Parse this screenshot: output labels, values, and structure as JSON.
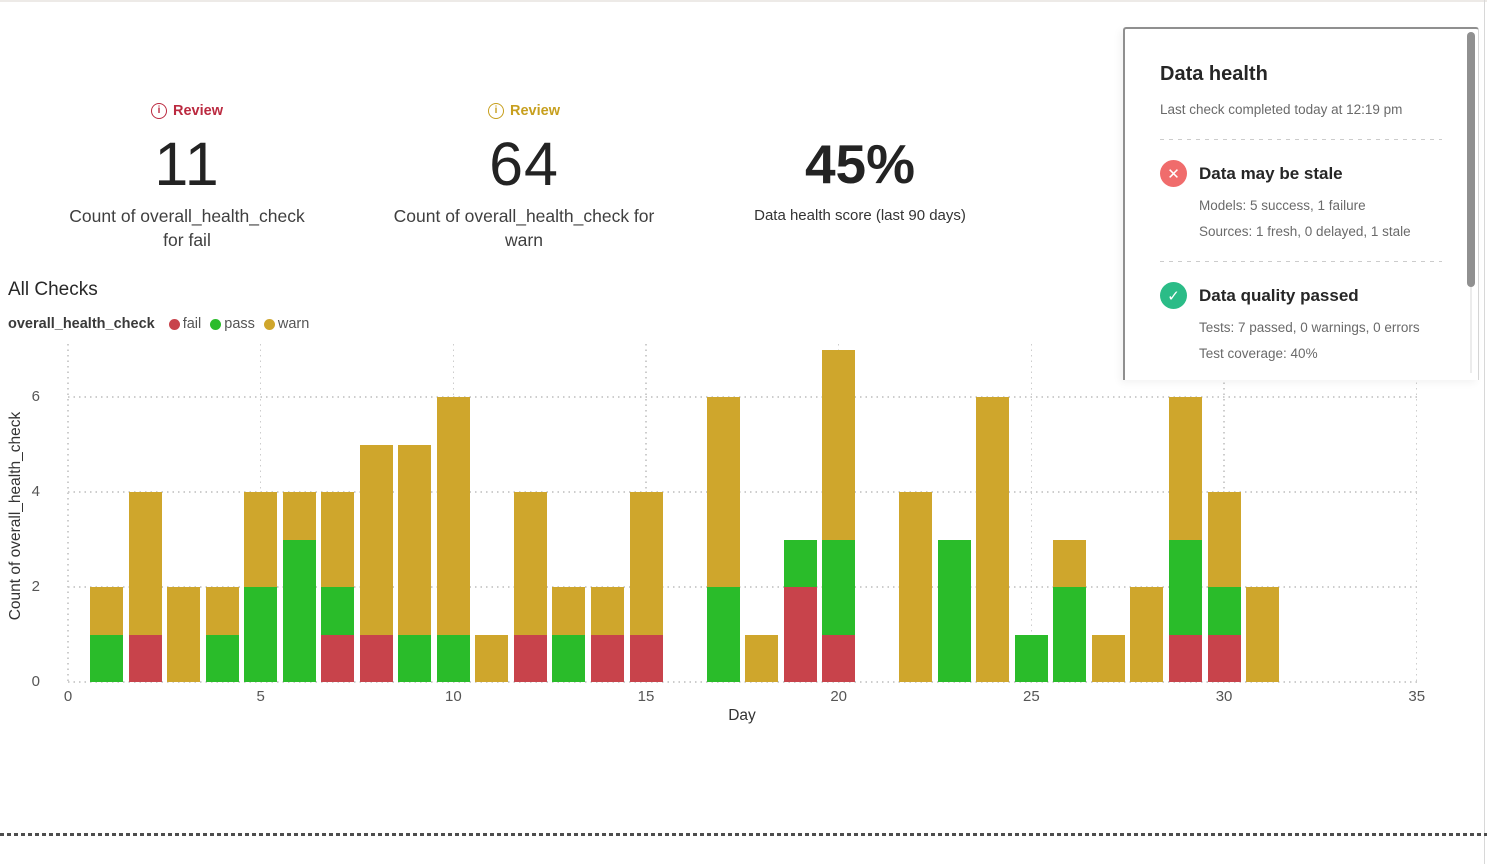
{
  "accent_colors": {
    "fail": "#c8434b",
    "pass": "#2abc2a",
    "warn": "#cfa62c",
    "badge_fail": "#bb2a40",
    "badge_warn": "#c79f1e",
    "icon_fail_bg": "#f06c6c",
    "icon_pass_bg": "#2bbc87"
  },
  "kpis": [
    {
      "id": "fail",
      "badge": "Review",
      "badge_color": "#bb2a40",
      "value": "11",
      "label_lines": [
        "Count of overall_health_check",
        "for fail"
      ]
    },
    {
      "id": "warn",
      "badge": "Review",
      "badge_color": "#c79f1e",
      "value": "64",
      "label_lines": [
        "Count of overall_health_check for",
        "warn"
      ]
    },
    {
      "id": "score",
      "value": "45%",
      "label_lines": [
        "Data health score (last 90 days)"
      ]
    }
  ],
  "section": {
    "title": "All Checks"
  },
  "legend": {
    "series_name": "overall_health_check",
    "items": [
      {
        "label": "fail",
        "color": "#c8434b"
      },
      {
        "label": "pass",
        "color": "#2abc2a"
      },
      {
        "label": "warn",
        "color": "#cfa62c"
      }
    ]
  },
  "chart_data": {
    "type": "bar",
    "stacked": true,
    "title": "All Checks",
    "xlabel": "Day",
    "ylabel": "Count of overall_health_check",
    "x": [
      1,
      2,
      3,
      4,
      5,
      6,
      7,
      8,
      9,
      10,
      11,
      12,
      13,
      14,
      15,
      16,
      17,
      18,
      19,
      20,
      21,
      22,
      23,
      24,
      25,
      26,
      27,
      28,
      29,
      30,
      31
    ],
    "series": [
      {
        "name": "fail",
        "color": "#c8434b",
        "values": [
          0,
          1,
          0,
          0,
          0,
          0,
          1,
          1,
          0,
          0,
          0,
          1,
          0,
          1,
          1,
          0,
          0,
          0,
          2,
          1,
          0,
          0,
          0,
          0,
          0,
          0,
          0,
          0,
          1,
          1,
          0
        ]
      },
      {
        "name": "pass",
        "color": "#2abc2a",
        "values": [
          1,
          0,
          0,
          1,
          2,
          3,
          1,
          0,
          1,
          1,
          0,
          0,
          1,
          0,
          0,
          0,
          2,
          0,
          1,
          2,
          0,
          0,
          3,
          0,
          1,
          2,
          0,
          0,
          2,
          1,
          0
        ]
      },
      {
        "name": "warn",
        "color": "#cfa62c",
        "values": [
          1,
          3,
          2,
          1,
          2,
          1,
          2,
          4,
          4,
          5,
          1,
          3,
          1,
          1,
          3,
          0,
          4,
          1,
          0,
          4,
          0,
          4,
          0,
          6,
          0,
          1,
          1,
          2,
          3,
          2,
          2
        ]
      }
    ],
    "x_ticks": [
      0,
      5,
      10,
      15,
      20,
      25,
      30,
      35
    ],
    "y_ticks": [
      0,
      2,
      4,
      6
    ],
    "xlim": [
      0,
      35.1
    ],
    "ylim": [
      0,
      7.1
    ],
    "grid": "dotted",
    "legend_position": "top-left"
  },
  "health_panel": {
    "title": "Data health",
    "subtitle": "Last check completed today at 12:19 pm",
    "items": [
      {
        "id": "stale",
        "icon": "x",
        "icon_color": "#f06c6c",
        "title": "Data may be stale",
        "details": [
          "Models: 5 success, 1 failure",
          "Sources: 1 fresh, 0 delayed, 1 stale"
        ]
      },
      {
        "id": "quality",
        "icon": "check",
        "icon_color": "#2bbc87",
        "title": "Data quality passed",
        "details": [
          "Tests: 7 passed, 0 warnings, 0 errors",
          "Test coverage: 40%"
        ]
      }
    ]
  }
}
